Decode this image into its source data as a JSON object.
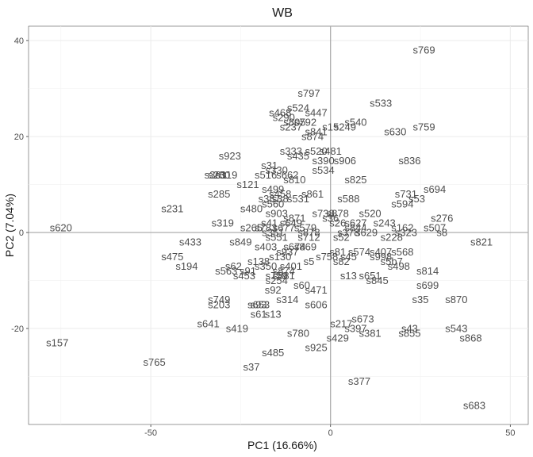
{
  "chart_data": {
    "type": "scatter",
    "title": "WB",
    "xlabel": "PC1 (16.66%)",
    "ylabel": "PC2 (7.04%)",
    "xlim": [
      -84,
      55
    ],
    "ylim": [
      -40,
      43
    ],
    "xticks": [
      -50,
      0,
      50
    ],
    "yticks": [
      -20,
      0,
      20,
      40
    ],
    "xtick_labels": [
      "-50",
      "0",
      "50"
    ],
    "ytick_labels": [
      "-20",
      "0",
      "20",
      "40"
    ],
    "grid": true,
    "reference_lines": {
      "x": 0,
      "y": 0
    },
    "point_color": "#4d4d4d",
    "points": [
      {
        "label": "s769",
        "x": 26,
        "y": 38
      },
      {
        "label": "s797",
        "x": -6,
        "y": 29
      },
      {
        "label": "s533",
        "x": 14,
        "y": 27
      },
      {
        "label": "s524",
        "x": -9,
        "y": 26
      },
      {
        "label": "s447",
        "x": -4,
        "y": 25
      },
      {
        "label": "s468",
        "x": -14,
        "y": 25
      },
      {
        "label": "s290",
        "x": -13,
        "y": 24
      },
      {
        "label": "s540",
        "x": 7,
        "y": 23
      },
      {
        "label": "s792",
        "x": -7,
        "y": 23
      },
      {
        "label": "s805",
        "x": -10,
        "y": 23
      },
      {
        "label": "s759",
        "x": 26,
        "y": 22
      },
      {
        "label": "s630",
        "x": 18,
        "y": 21
      },
      {
        "label": "s249",
        "x": 4,
        "y": 22
      },
      {
        "label": "s15",
        "x": 0,
        "y": 22
      },
      {
        "label": "s237",
        "x": -11,
        "y": 22
      },
      {
        "label": "s841",
        "x": -4,
        "y": 21
      },
      {
        "label": "s874",
        "x": -5,
        "y": 20
      },
      {
        "label": "s333",
        "x": -11,
        "y": 17
      },
      {
        "label": "s520",
        "x": -4,
        "y": 17
      },
      {
        "label": "s481",
        "x": 0,
        "y": 17
      },
      {
        "label": "s923",
        "x": -28,
        "y": 16
      },
      {
        "label": "s435",
        "x": -9,
        "y": 16
      },
      {
        "label": "s390",
        "x": -2,
        "y": 15
      },
      {
        "label": "s906",
        "x": 4,
        "y": 15
      },
      {
        "label": "s836",
        "x": 22,
        "y": 15
      },
      {
        "label": "s31",
        "x": -17,
        "y": 14
      },
      {
        "label": "s330",
        "x": -15,
        "y": 13
      },
      {
        "label": "s534",
        "x": -2,
        "y": 13
      },
      {
        "label": "s361",
        "x": -32,
        "y": 12
      },
      {
        "label": "s516",
        "x": -18,
        "y": 12
      },
      {
        "label": "s662",
        "x": -12,
        "y": 12
      },
      {
        "label": "s280",
        "x": -31,
        "y": 12
      },
      {
        "label": "s319",
        "x": -29,
        "y": 12
      },
      {
        "label": "s810",
        "x": -10,
        "y": 11
      },
      {
        "label": "s825",
        "x": 7,
        "y": 11
      },
      {
        "label": "s121",
        "x": -23,
        "y": 10
      },
      {
        "label": "s499",
        "x": -16,
        "y": 9
      },
      {
        "label": "s694",
        "x": 29,
        "y": 9
      },
      {
        "label": "s285",
        "x": -31,
        "y": 8
      },
      {
        "label": "s861",
        "x": -5,
        "y": 8
      },
      {
        "label": "s731",
        "x": 21,
        "y": 8
      },
      {
        "label": "s458",
        "x": -14,
        "y": 8
      },
      {
        "label": "s531",
        "x": -9,
        "y": 7
      },
      {
        "label": "s588",
        "x": 5,
        "y": 7
      },
      {
        "label": "s387",
        "x": -17,
        "y": 7
      },
      {
        "label": "s38",
        "x": -14,
        "y": 7
      },
      {
        "label": "s53",
        "x": 24,
        "y": 7
      },
      {
        "label": "s594",
        "x": 20,
        "y": 6
      },
      {
        "label": "s560",
        "x": -16,
        "y": 6
      },
      {
        "label": "s231",
        "x": -44,
        "y": 5
      },
      {
        "label": "s480",
        "x": -22,
        "y": 5
      },
      {
        "label": "s903",
        "x": -15,
        "y": 4
      },
      {
        "label": "s738",
        "x": -2,
        "y": 4
      },
      {
        "label": "s878",
        "x": 2,
        "y": 4
      },
      {
        "label": "s520",
        "x": 11,
        "y": 4
      },
      {
        "label": "s276",
        "x": 31,
        "y": 3
      },
      {
        "label": "s871",
        "x": -10,
        "y": 3
      },
      {
        "label": "s36",
        "x": 0,
        "y": 3
      },
      {
        "label": "s319",
        "x": -30,
        "y": 2
      },
      {
        "label": "s41",
        "x": -17,
        "y": 2
      },
      {
        "label": "s649",
        "x": -11,
        "y": 2
      },
      {
        "label": "s26",
        "x": 2,
        "y": 2
      },
      {
        "label": "s627",
        "x": 7,
        "y": 2
      },
      {
        "label": "s243",
        "x": 15,
        "y": 2
      },
      {
        "label": "s620",
        "x": -75,
        "y": 1
      },
      {
        "label": "s265",
        "x": -22,
        "y": 1
      },
      {
        "label": "s783",
        "x": -18,
        "y": 1
      },
      {
        "label": "s677",
        "x": -13,
        "y": 1
      },
      {
        "label": "s579",
        "x": -7,
        "y": 1
      },
      {
        "label": "s844",
        "x": 7,
        "y": 1
      },
      {
        "label": "s162",
        "x": 20,
        "y": 1
      },
      {
        "label": "s507",
        "x": 29,
        "y": 1
      },
      {
        "label": "s323",
        "x": 21,
        "y": 0
      },
      {
        "label": "s8",
        "x": 31,
        "y": 0
      },
      {
        "label": "s351",
        "x": -16,
        "y": 0
      },
      {
        "label": "s878",
        "x": -6,
        "y": 0
      },
      {
        "label": "s378",
        "x": 5,
        "y": 0
      },
      {
        "label": "s629",
        "x": 10,
        "y": 0
      },
      {
        "label": "s433",
        "x": -39,
        "y": -2
      },
      {
        "label": "s849",
        "x": -25,
        "y": -2
      },
      {
        "label": "s551",
        "x": -15,
        "y": -1
      },
      {
        "label": "s712",
        "x": -6,
        "y": -1
      },
      {
        "label": "s52",
        "x": 3,
        "y": -1
      },
      {
        "label": "s228",
        "x": 17,
        "y": -1
      },
      {
        "label": "s821",
        "x": 42,
        "y": -2
      },
      {
        "label": "s403",
        "x": -18,
        "y": -3
      },
      {
        "label": "s674",
        "x": -10,
        "y": -3
      },
      {
        "label": "s869",
        "x": -7,
        "y": -3
      },
      {
        "label": "s937",
        "x": -12,
        "y": -4
      },
      {
        "label": "s81",
        "x": 2,
        "y": -4
      },
      {
        "label": "s574",
        "x": 8,
        "y": -4
      },
      {
        "label": "s407",
        "x": 14,
        "y": -4
      },
      {
        "label": "s568",
        "x": 20,
        "y": -4
      },
      {
        "label": "s475",
        "x": -44,
        "y": -5
      },
      {
        "label": "s130",
        "x": -14,
        "y": -5
      },
      {
        "label": "s758",
        "x": -1,
        "y": -5
      },
      {
        "label": "s45",
        "x": 5,
        "y": -5
      },
      {
        "label": "s998",
        "x": 14,
        "y": -5
      },
      {
        "label": "s138",
        "x": -20,
        "y": -6
      },
      {
        "label": "s5",
        "x": -6,
        "y": -6
      },
      {
        "label": "s82",
        "x": 3,
        "y": -6
      },
      {
        "label": "s5b7",
        "x": 17,
        "y": -6
      },
      {
        "label": "s62",
        "x": -27,
        "y": -7
      },
      {
        "label": "s194",
        "x": -40,
        "y": -7
      },
      {
        "label": "s350",
        "x": -18,
        "y": -7
      },
      {
        "label": "s401",
        "x": -11,
        "y": -7
      },
      {
        "label": "s498",
        "x": 19,
        "y": -7
      },
      {
        "label": "s814",
        "x": 27,
        "y": -8
      },
      {
        "label": "s563",
        "x": -29,
        "y": -8
      },
      {
        "label": "s91",
        "x": -23,
        "y": -8
      },
      {
        "label": "s874",
        "x": -13,
        "y": -8
      },
      {
        "label": "s759",
        "x": -15,
        "y": -9
      },
      {
        "label": "s453",
        "x": -24,
        "y": -9
      },
      {
        "label": "s881",
        "x": -13,
        "y": -9
      },
      {
        "label": "s13",
        "x": 5,
        "y": -9
      },
      {
        "label": "s651",
        "x": 11,
        "y": -9
      },
      {
        "label": "s845",
        "x": 13,
        "y": -10
      },
      {
        "label": "s699",
        "x": 27,
        "y": -11
      },
      {
        "label": "s254",
        "x": -15,
        "y": -10
      },
      {
        "label": "s60",
        "x": -8,
        "y": -11
      },
      {
        "label": "s92",
        "x": -16,
        "y": -12
      },
      {
        "label": "s471",
        "x": -4,
        "y": -12
      },
      {
        "label": "s35",
        "x": 25,
        "y": -14
      },
      {
        "label": "s870",
        "x": 35,
        "y": -14
      },
      {
        "label": "s749",
        "x": -31,
        "y": -14
      },
      {
        "label": "s314",
        "x": -12,
        "y": -14
      },
      {
        "label": "s203",
        "x": -31,
        "y": -15
      },
      {
        "label": "s653",
        "x": -20,
        "y": -15
      },
      {
        "label": "s606",
        "x": -4,
        "y": -15
      },
      {
        "label": "s93",
        "x": -20,
        "y": -15
      },
      {
        "label": "s61",
        "x": -20,
        "y": -17
      },
      {
        "label": "s13",
        "x": -16,
        "y": -17
      },
      {
        "label": "s673",
        "x": 9,
        "y": -18
      },
      {
        "label": "s641",
        "x": -34,
        "y": -19
      },
      {
        "label": "s217",
        "x": 3,
        "y": -19
      },
      {
        "label": "s397",
        "x": 7,
        "y": -20
      },
      {
        "label": "s419",
        "x": -26,
        "y": -20
      },
      {
        "label": "s543",
        "x": 35,
        "y": -20
      },
      {
        "label": "s43",
        "x": 22,
        "y": -20
      },
      {
        "label": "s855",
        "x": 22,
        "y": -21
      },
      {
        "label": "s780",
        "x": -9,
        "y": -21
      },
      {
        "label": "s381",
        "x": 11,
        "y": -21
      },
      {
        "label": "s429",
        "x": 2,
        "y": -22
      },
      {
        "label": "s868",
        "x": 39,
        "y": -22
      },
      {
        "label": "s157",
        "x": -76,
        "y": -23
      },
      {
        "label": "s925",
        "x": -4,
        "y": -24
      },
      {
        "label": "s485",
        "x": -16,
        "y": -25
      },
      {
        "label": "s765",
        "x": -49,
        "y": -27
      },
      {
        "label": "s37",
        "x": -22,
        "y": -28
      },
      {
        "label": "s377",
        "x": 8,
        "y": -31
      },
      {
        "label": "s683",
        "x": 40,
        "y": -36
      }
    ]
  }
}
